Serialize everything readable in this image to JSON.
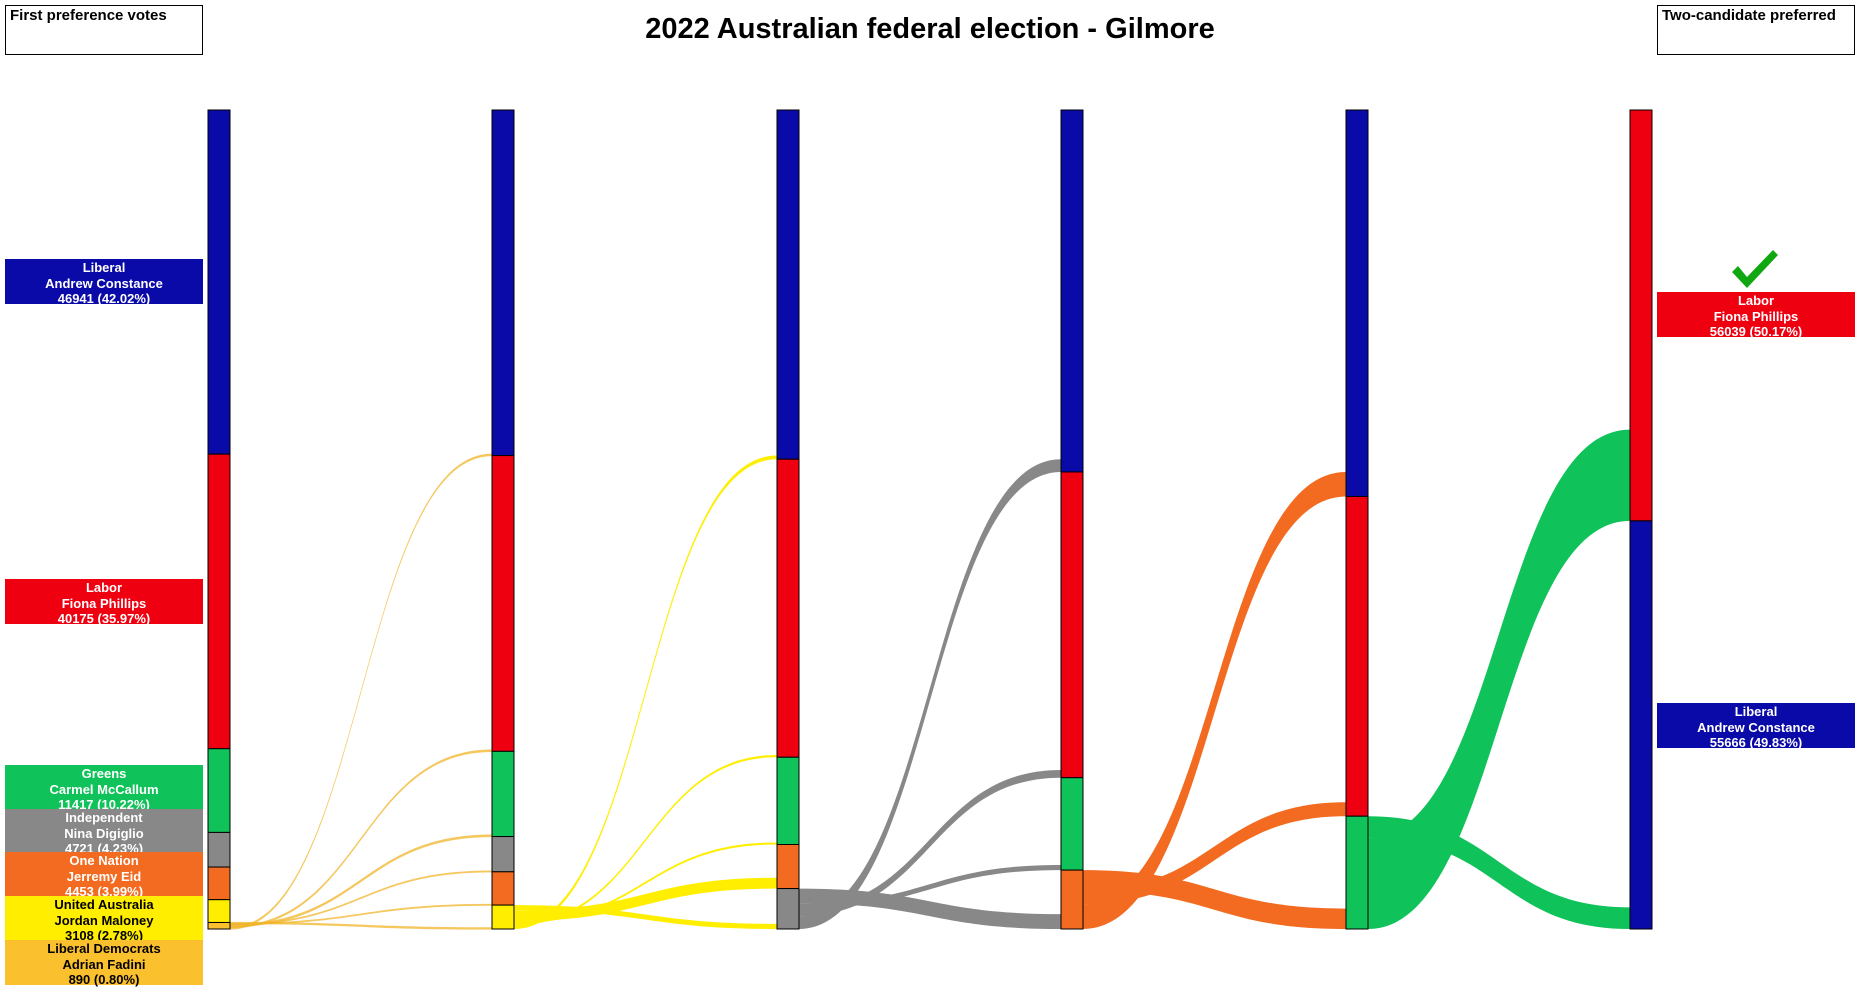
{
  "title": "2022 Australian federal election - Gilmore",
  "left_header": "First preference votes",
  "right_header": "Two-candidate preferred",
  "colors": {
    "liberal": "#0a0aa8",
    "labor": "#ee0011",
    "greens": "#10c25a",
    "independent": "#888888",
    "one_nation": "#f26b20",
    "united_australia": "#ffee00",
    "liberal_democrats": "#fbc02d",
    "tie_flow": "#f0b429"
  },
  "first_preferences": [
    {
      "party": "Liberal",
      "candidate": "Andrew Constance",
      "votes_text": "46941 (42.02%)",
      "votes": 46941,
      "color": "#0a0aa8",
      "text_dark": false
    },
    {
      "party": "Labor",
      "candidate": "Fiona Phillips",
      "votes_text": "40175 (35.97%)",
      "votes": 40175,
      "color": "#ee0011",
      "text_dark": false
    },
    {
      "party": "Greens",
      "candidate": "Carmel McCallum",
      "votes_text": "11417 (10.22%)",
      "votes": 11417,
      "color": "#10c25a",
      "text_dark": false
    },
    {
      "party": "Independent",
      "candidate": "Nina Digiglio",
      "votes_text": "4721 (4.23%)",
      "votes": 4721,
      "color": "#888888",
      "text_dark": false
    },
    {
      "party": "One Nation",
      "candidate": "Jerremy Eid",
      "votes_text": "4453 (3.99%)",
      "votes": 4453,
      "color": "#f26b20",
      "text_dark": false
    },
    {
      "party": "United Australia",
      "candidate": "Jordan Maloney",
      "votes_text": "3108 (2.78%)",
      "votes": 3108,
      "color": "#ffee00",
      "text_dark": true
    },
    {
      "party": "Liberal Democrats",
      "candidate": "Adrian Fadini",
      "votes_text": "890 (0.80%)",
      "votes": 890,
      "color": "#fbc02d",
      "text_dark": true
    }
  ],
  "two_candidate_preferred": [
    {
      "party": "Labor",
      "candidate": "Fiona Phillips",
      "votes_text": "56039 (50.17%)",
      "votes": 56039,
      "color": "#ee0011",
      "winner": true
    },
    {
      "party": "Liberal",
      "candidate": "Andrew Constance",
      "votes_text": "55666 (49.83%)",
      "votes": 55666,
      "color": "#0a0aa8",
      "winner": false
    }
  ],
  "chart_data": {
    "type": "sankey",
    "title": "2022 Australian federal election - Gilmore",
    "stages": [
      {
        "segments": [
          {
            "party": "Liberal",
            "votes": 46941
          },
          {
            "party": "Labor",
            "votes": 40175
          },
          {
            "party": "Greens",
            "votes": 11417
          },
          {
            "party": "Independent",
            "votes": 4721
          },
          {
            "party": "One Nation",
            "votes": 4453
          },
          {
            "party": "United Australia",
            "votes": 3108
          },
          {
            "party": "Liberal Democrats",
            "votes": 890
          }
        ]
      },
      {
        "segments": [
          {
            "party": "Liberal",
            "votes": 47130
          },
          {
            "party": "Labor",
            "votes": 40345
          },
          {
            "party": "Greens",
            "votes": 11620
          },
          {
            "party": "Independent",
            "votes": 4810
          },
          {
            "party": "One Nation",
            "votes": 4540
          },
          {
            "party": "United Australia",
            "votes": 3260
          }
        ]
      },
      {
        "segments": [
          {
            "party": "Liberal",
            "votes": 47630
          },
          {
            "party": "Labor",
            "votes": 40650
          },
          {
            "party": "Greens",
            "votes": 11900
          },
          {
            "party": "One Nation",
            "votes": 6010
          },
          {
            "party": "Independent",
            "votes": 5515
          }
        ]
      },
      {
        "segments": [
          {
            "party": "Liberal",
            "votes": 49370
          },
          {
            "party": "Labor",
            "votes": 41700
          },
          {
            "party": "Greens",
            "votes": 12600
          },
          {
            "party": "One Nation",
            "votes": 8035
          }
        ]
      },
      {
        "segments": [
          {
            "party": "Liberal",
            "votes": 52720
          },
          {
            "party": "Labor",
            "votes": 43600
          },
          {
            "party": "Greens",
            "votes": 15385
          }
        ]
      },
      {
        "segments": [
          {
            "party": "Labor",
            "votes": 56039
          },
          {
            "party": "Liberal",
            "votes": 55666
          }
        ]
      }
    ],
    "flows": [
      {
        "from_stage": 0,
        "from": "Liberal Democrats",
        "to": "Liberal",
        "votes": 189
      },
      {
        "from_stage": 0,
        "from": "Liberal Democrats",
        "to": "Labor",
        "votes": 170
      },
      {
        "from_stage": 0,
        "from": "Liberal Democrats",
        "to": "Greens",
        "votes": 203
      },
      {
        "from_stage": 0,
        "from": "Liberal Democrats",
        "to": "Independent",
        "votes": 89
      },
      {
        "from_stage": 0,
        "from": "Liberal Democrats",
        "to": "One Nation",
        "votes": 87
      },
      {
        "from_stage": 0,
        "from": "Liberal Democrats",
        "to": "United Australia",
        "votes": 152
      },
      {
        "from_stage": 1,
        "from": "United Australia",
        "to": "Liberal",
        "votes": 500
      },
      {
        "from_stage": 1,
        "from": "United Australia",
        "to": "Labor",
        "votes": 305
      },
      {
        "from_stage": 1,
        "from": "United Australia",
        "to": "Greens",
        "votes": 280
      },
      {
        "from_stage": 1,
        "from": "United Australia",
        "to": "One Nation",
        "votes": 1470
      },
      {
        "from_stage": 1,
        "from": "United Australia",
        "to": "Independent",
        "votes": 705
      },
      {
        "from_stage": 2,
        "from": "Independent",
        "to": "Liberal",
        "votes": 1740
      },
      {
        "from_stage": 2,
        "from": "Independent",
        "to": "Labor",
        "votes": 1050
      },
      {
        "from_stage": 2,
        "from": "Independent",
        "to": "Greens",
        "votes": 700
      },
      {
        "from_stage": 2,
        "from": "Independent",
        "to": "One Nation",
        "votes": 2025
      },
      {
        "from_stage": 3,
        "from": "One Nation",
        "to": "Liberal",
        "votes": 3350
      },
      {
        "from_stage": 3,
        "from": "One Nation",
        "to": "Labor",
        "votes": 1900
      },
      {
        "from_stage": 3,
        "from": "One Nation",
        "to": "Greens",
        "votes": 2785
      },
      {
        "from_stage": 4,
        "from": "Greens",
        "to": "Labor",
        "votes": 12439
      },
      {
        "from_stage": 4,
        "from": "Greens",
        "to": "Liberal",
        "votes": 2946
      }
    ]
  }
}
